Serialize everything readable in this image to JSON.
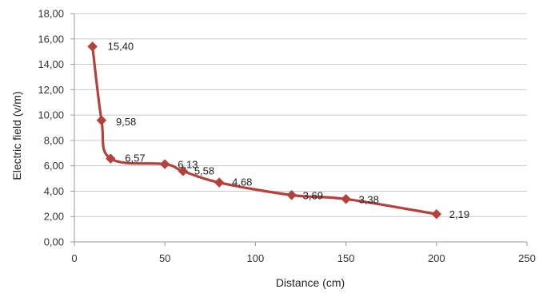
{
  "chart_data": {
    "type": "line",
    "title": "",
    "xlabel": "Distance (cm)",
    "ylabel": "Electric field (v/m)",
    "xlim": [
      0,
      250
    ],
    "ylim": [
      0,
      18
    ],
    "x_ticks": [
      0,
      50,
      100,
      150,
      200,
      250
    ],
    "x_tick_labels": [
      "0",
      "50",
      "100",
      "150",
      "200",
      "250"
    ],
    "y_ticks": [
      0,
      2,
      4,
      6,
      8,
      10,
      12,
      14,
      16,
      18
    ],
    "y_tick_labels": [
      "0,00",
      "2,00",
      "4,00",
      "6,00",
      "8,00",
      "10,00",
      "12,00",
      "14,00",
      "16,00",
      "18,00"
    ],
    "grid": "horizontal",
    "legend": "none",
    "series": [
      {
        "color": "#B5413D",
        "marker": "diamond",
        "x": [
          10,
          15,
          20,
          50,
          60,
          80,
          120,
          150,
          200
        ],
        "y": [
          15.4,
          9.58,
          6.57,
          6.13,
          5.58,
          4.68,
          3.69,
          3.38,
          2.19
        ],
        "labels": [
          "15,40",
          "9,58",
          "6,57",
          "6,13",
          "5,58",
          "4,68",
          "3,69",
          "3,38",
          "2,19"
        ]
      }
    ]
  }
}
